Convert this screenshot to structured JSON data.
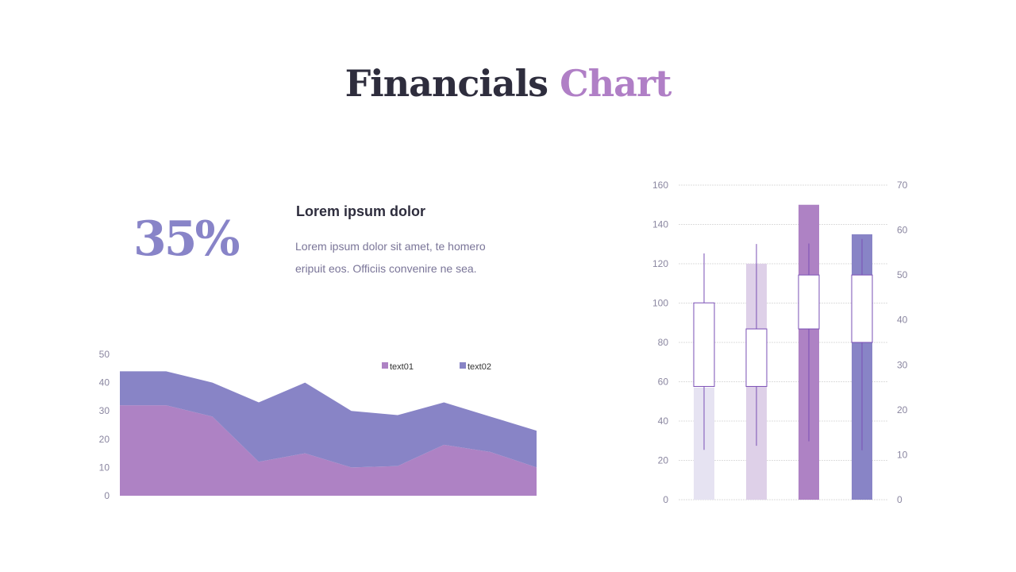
{
  "title": {
    "part1": "Financials",
    "part2": "Chart"
  },
  "stat": {
    "value": "35%",
    "heading": "Lorem ipsum dolor",
    "text": "Lorem ipsum dolor sit amet, te homero eripuit eos. Officiis convenire ne sea."
  },
  "chart_data": [
    {
      "type": "area",
      "stacked": true,
      "ylim": [
        0,
        50
      ],
      "yticks": [
        0,
        10,
        20,
        30,
        40,
        50
      ],
      "grid": false,
      "legend": "top-right",
      "series": [
        {
          "name": "text01",
          "color": "#ae82c4",
          "values": [
            32,
            32,
            28,
            12,
            15,
            10,
            10.5,
            18,
            15.5,
            10
          ]
        },
        {
          "name": "text02",
          "color": "#8884c6",
          "values": [
            12,
            12,
            12,
            21,
            25,
            20,
            18,
            15,
            12.5,
            13
          ]
        }
      ]
    },
    {
      "type": "bar+candlestick",
      "ylim_left": [
        0,
        160
      ],
      "yticks_left": [
        0,
        20,
        40,
        60,
        80,
        100,
        120,
        140,
        160
      ],
      "ylim_right": [
        0,
        70
      ],
      "yticks_right": [
        0,
        10,
        20,
        30,
        40,
        50,
        60,
        70
      ],
      "grid": true,
      "bars": {
        "values": [
          57,
          120,
          150,
          135
        ],
        "colors": [
          "#e6e3f2",
          "#ded0e8",
          "#ae82c4",
          "#8884c6"
        ]
      },
      "candles": [
        {
          "open": 25.2,
          "close": 43.8,
          "low": 11.1,
          "high": 54.8
        },
        {
          "open": 25.2,
          "close": 38,
          "low": 12,
          "high": 56.9
        },
        {
          "open": 38,
          "close": 50,
          "low": 13,
          "high": 57
        },
        {
          "open": 35,
          "close": 50,
          "low": 11,
          "high": 58
        }
      ],
      "candle_color": "#7a4fb5"
    }
  ]
}
